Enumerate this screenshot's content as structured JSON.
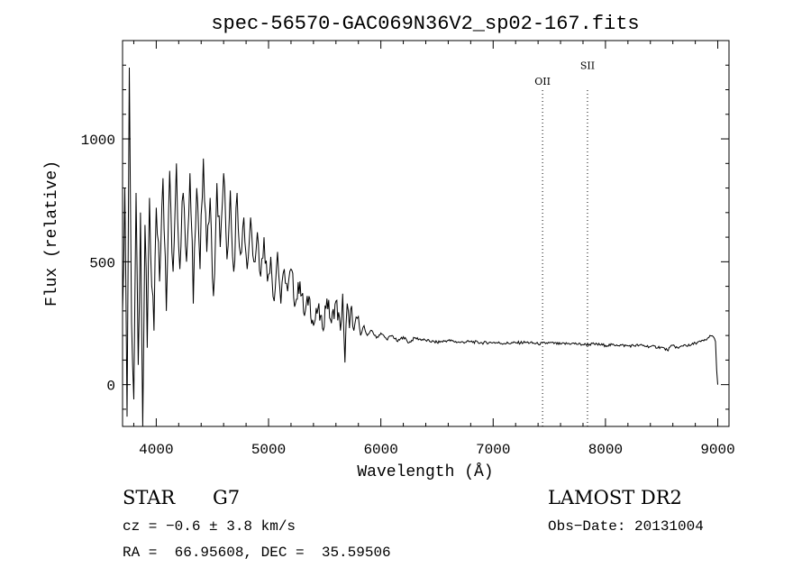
{
  "chart_data": {
    "type": "line",
    "title": "spec-56570-GAC069N36V2_sp02-167.fits",
    "xlabel": "Wavelength (Å)",
    "ylabel": "Flux (relative)",
    "xlim": [
      3700,
      9100
    ],
    "ylim": [
      -170,
      1400
    ],
    "x_ticks": [
      4000,
      5000,
      6000,
      7000,
      8000,
      9000
    ],
    "y_ticks": [
      0,
      500,
      1000
    ],
    "grid": false,
    "legend": "none",
    "line_color": "#000000",
    "series": [
      {
        "x": [
          3700,
          3720,
          3740,
          3760,
          3780,
          3800,
          3820,
          3840,
          3860,
          3880,
          3900,
          3920,
          3940,
          3960,
          3980,
          4000,
          4030,
          4060,
          4090,
          4120,
          4150,
          4180,
          4210,
          4240,
          4270,
          4300,
          4330,
          4360,
          4390,
          4420,
          4450,
          4480,
          4510,
          4540,
          4570,
          4600,
          4630,
          4660,
          4690,
          4720,
          4750,
          4780,
          4810,
          4840,
          4870,
          4900,
          4930,
          4960,
          4990,
          5020,
          5050,
          5080,
          5110,
          5140,
          5170,
          5200,
          5240,
          5280,
          5320,
          5360,
          5400,
          5440,
          5480,
          5520,
          5560,
          5600,
          5640,
          5660,
          5680,
          5700,
          5720,
          5740,
          5760,
          5790,
          5820,
          5850,
          5880,
          5920,
          5960,
          6000,
          6050,
          6100,
          6150,
          6200,
          6250,
          6300,
          6400,
          6500,
          6600,
          6700,
          6800,
          6900,
          7000,
          7100,
          7200,
          7300,
          7400,
          7500,
          7600,
          7700,
          7800,
          7900,
          8000,
          8100,
          8200,
          8300,
          8400,
          8500,
          8550,
          8600,
          8650,
          8700,
          8750,
          8800,
          8850,
          8900,
          8930,
          8960,
          8980,
          8990,
          9000
        ],
        "values": [
          300,
          800,
          -130,
          1290,
          250,
          -60,
          780,
          80,
          700,
          -170,
          650,
          150,
          760,
          400,
          220,
          720,
          420,
          840,
          300,
          870,
          460,
          900,
          470,
          780,
          500,
          860,
          330,
          800,
          470,
          920,
          540,
          760,
          360,
          820,
          560,
          860,
          510,
          790,
          460,
          780,
          530,
          680,
          470,
          680,
          500,
          620,
          440,
          600,
          420,
          520,
          340,
          540,
          330,
          470,
          380,
          470,
          330,
          420,
          280,
          360,
          240,
          310,
          230,
          350,
          250,
          340,
          220,
          370,
          90,
          330,
          230,
          320,
          220,
          270,
          200,
          240,
          200,
          220,
          190,
          210,
          185,
          200,
          175,
          195,
          170,
          190,
          180,
          172,
          180,
          172,
          175,
          170,
          172,
          168,
          170,
          172,
          166,
          170,
          165,
          168,
          163,
          165,
          160,
          162,
          158,
          160,
          155,
          152,
          140,
          160,
          148,
          162,
          158,
          170,
          175,
          182,
          200,
          195,
          175,
          60,
          0
        ]
      }
    ],
    "annotations": [
      {
        "label": "OII",
        "x": 7440,
        "y": 1220
      },
      {
        "label": "SII",
        "x": 7840,
        "y": 1285
      }
    ]
  },
  "info": {
    "class": "STAR",
    "subclass": "G7",
    "survey": "LAMOST DR2",
    "cz": "cz = −0.6 ± 3.8 km/s",
    "obs_date": "Obs−Date: 20131004",
    "coords": "RA =  66.95608, DEC =  35.59506"
  }
}
